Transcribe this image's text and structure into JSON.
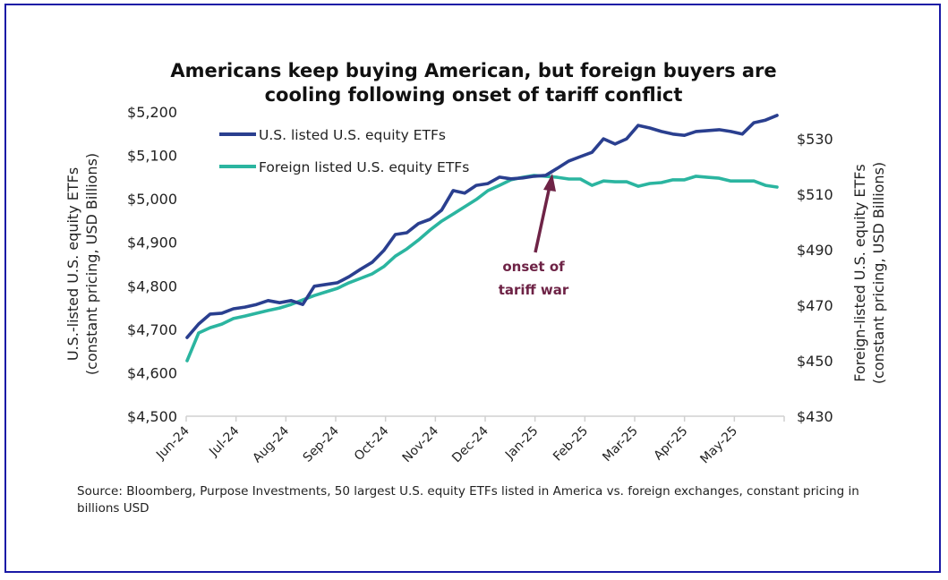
{
  "chart_data": {
    "type": "line",
    "title": "Americans keep buying American, but foreign buyers are cooling following onset of tariff conflict",
    "title_lines": [
      "Americans keep buying American, but foreign buyers are",
      "cooling following onset of tariff conflict"
    ],
    "xlabel": "",
    "ylabel_left_lines": [
      "U.S.-listed U.S. equity ETFs",
      "(constant pricing, USD Billions)"
    ],
    "ylabel_right_lines": [
      "Foreign-listed U.S. equity ETFs",
      "(constant pricing, USD Billions)"
    ],
    "x_tick_labels": [
      "Jun-24",
      "Jul-24",
      "Aug-24",
      "Sep-24",
      "Oct-24",
      "Nov-24",
      "Dec-24",
      "Jan-25",
      "Feb-25",
      "Mar-25",
      "Apr-25",
      "May-25"
    ],
    "x_range_months": [
      0,
      12
    ],
    "y_left": {
      "ticks": [
        4500,
        4600,
        4700,
        4800,
        4900,
        5000,
        5100,
        5200
      ],
      "tick_labels": [
        "$4,500",
        "$4,600",
        "$4,700",
        "$4,800",
        "$4,900",
        "$5,000",
        "$5,100",
        "$5,200"
      ],
      "ylim": [
        4500,
        5200
      ]
    },
    "y_right": {
      "ticks": [
        430,
        450,
        470,
        490,
        510,
        530
      ],
      "tick_labels": [
        "$430",
        "$450",
        "$470",
        "$490",
        "$510",
        "$530"
      ],
      "ylim": [
        430,
        539.7
      ]
    },
    "grid": false,
    "legend_position": "top-left",
    "series": [
      {
        "name": "U.S. listed U.S. equity ETFs",
        "axis": "left",
        "color": "#2a3f8f",
        "values": [
          4681,
          4712,
          4735,
          4737,
          4747,
          4751,
          4757,
          4766,
          4761,
          4766,
          4757,
          4799,
          4803,
          4807,
          4821,
          4838,
          4854,
          4881,
          4918,
          4922,
          4943,
          4953,
          4974,
          5019,
          5013,
          5031,
          5035,
          5050,
          5046,
          5048,
          5052,
          5054,
          5070,
          5087,
          5097,
          5107,
          5138,
          5126,
          5138,
          5169,
          5163,
          5155,
          5149,
          5146,
          5155,
          5157,
          5159,
          5155,
          5149,
          5175,
          5181,
          5192
        ]
      },
      {
        "name": "Foreign listed U.S. equity ETFs",
        "axis": "right",
        "color": "#2bb5a0",
        "values": [
          450.0,
          460.0,
          461.9,
          463.2,
          465.2,
          466.1,
          467.1,
          468.1,
          469.0,
          470.3,
          471.9,
          473.5,
          474.8,
          476.1,
          478.1,
          479.7,
          481.3,
          483.9,
          487.7,
          490.3,
          493.5,
          497.1,
          500.3,
          502.9,
          505.5,
          508.1,
          511.3,
          513.2,
          515.2,
          516.1,
          516.8,
          516.5,
          516.1,
          515.5,
          515.5,
          513.2,
          514.8,
          514.5,
          514.5,
          512.9,
          513.9,
          514.2,
          515.2,
          515.2,
          516.5,
          516.1,
          515.8,
          514.8,
          514.8,
          514.8,
          513.2,
          512.6
        ]
      }
    ],
    "annotation": {
      "lines": [
        "onset of",
        "tariff war"
      ],
      "color": "#6e2346",
      "points_to_month": 7.35
    }
  },
  "source_text": "Source: Bloomberg, Purpose Investments, 50 largest U.S. equity ETFs listed in America vs. foreign exchanges, constant pricing in billions USD"
}
